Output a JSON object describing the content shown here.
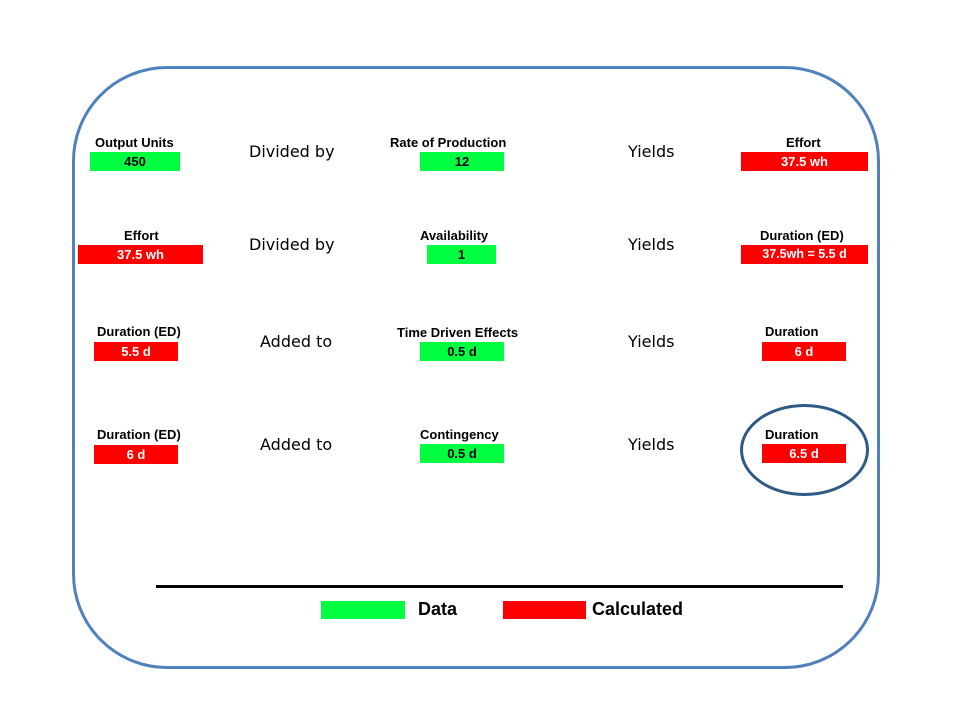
{
  "colors": {
    "data": "#00ff40",
    "calculated": "#ff0000",
    "frame": "#4f81bd",
    "oval": "#2e5a86"
  },
  "rows": [
    {
      "input1": {
        "label": "Output Units",
        "value": "450"
      },
      "operator": "Divided by",
      "input2": {
        "label": "Rate of Production",
        "value": "12"
      },
      "result_word": "Yields",
      "result": {
        "label": "Effort",
        "value": "37.5 wh"
      }
    },
    {
      "input1": {
        "label": "Effort",
        "value": "37.5 wh"
      },
      "operator": "Divided by",
      "input2": {
        "label": "Availability",
        "value": "1"
      },
      "result_word": "Yields",
      "result": {
        "label": "Duration (ED)",
        "value": "37.5wh = 5.5 d"
      }
    },
    {
      "input1": {
        "label": "Duration (ED)",
        "value": "5.5 d"
      },
      "operator": "Added to",
      "input2": {
        "label": "Time Driven Effects",
        "value": "0.5  d"
      },
      "result_word": "Yields",
      "result": {
        "label": "Duration",
        "value": "6 d"
      }
    },
    {
      "input1": {
        "label": "Duration (ED)",
        "value": "6 d"
      },
      "operator": "Added to",
      "input2": {
        "label": "Contingency",
        "value": "0.5  d"
      },
      "result_word": "Yields",
      "result": {
        "label": "Duration",
        "value": "6.5 d"
      }
    }
  ],
  "legend": {
    "data_label": "Data",
    "calculated_label": "Calculated"
  }
}
